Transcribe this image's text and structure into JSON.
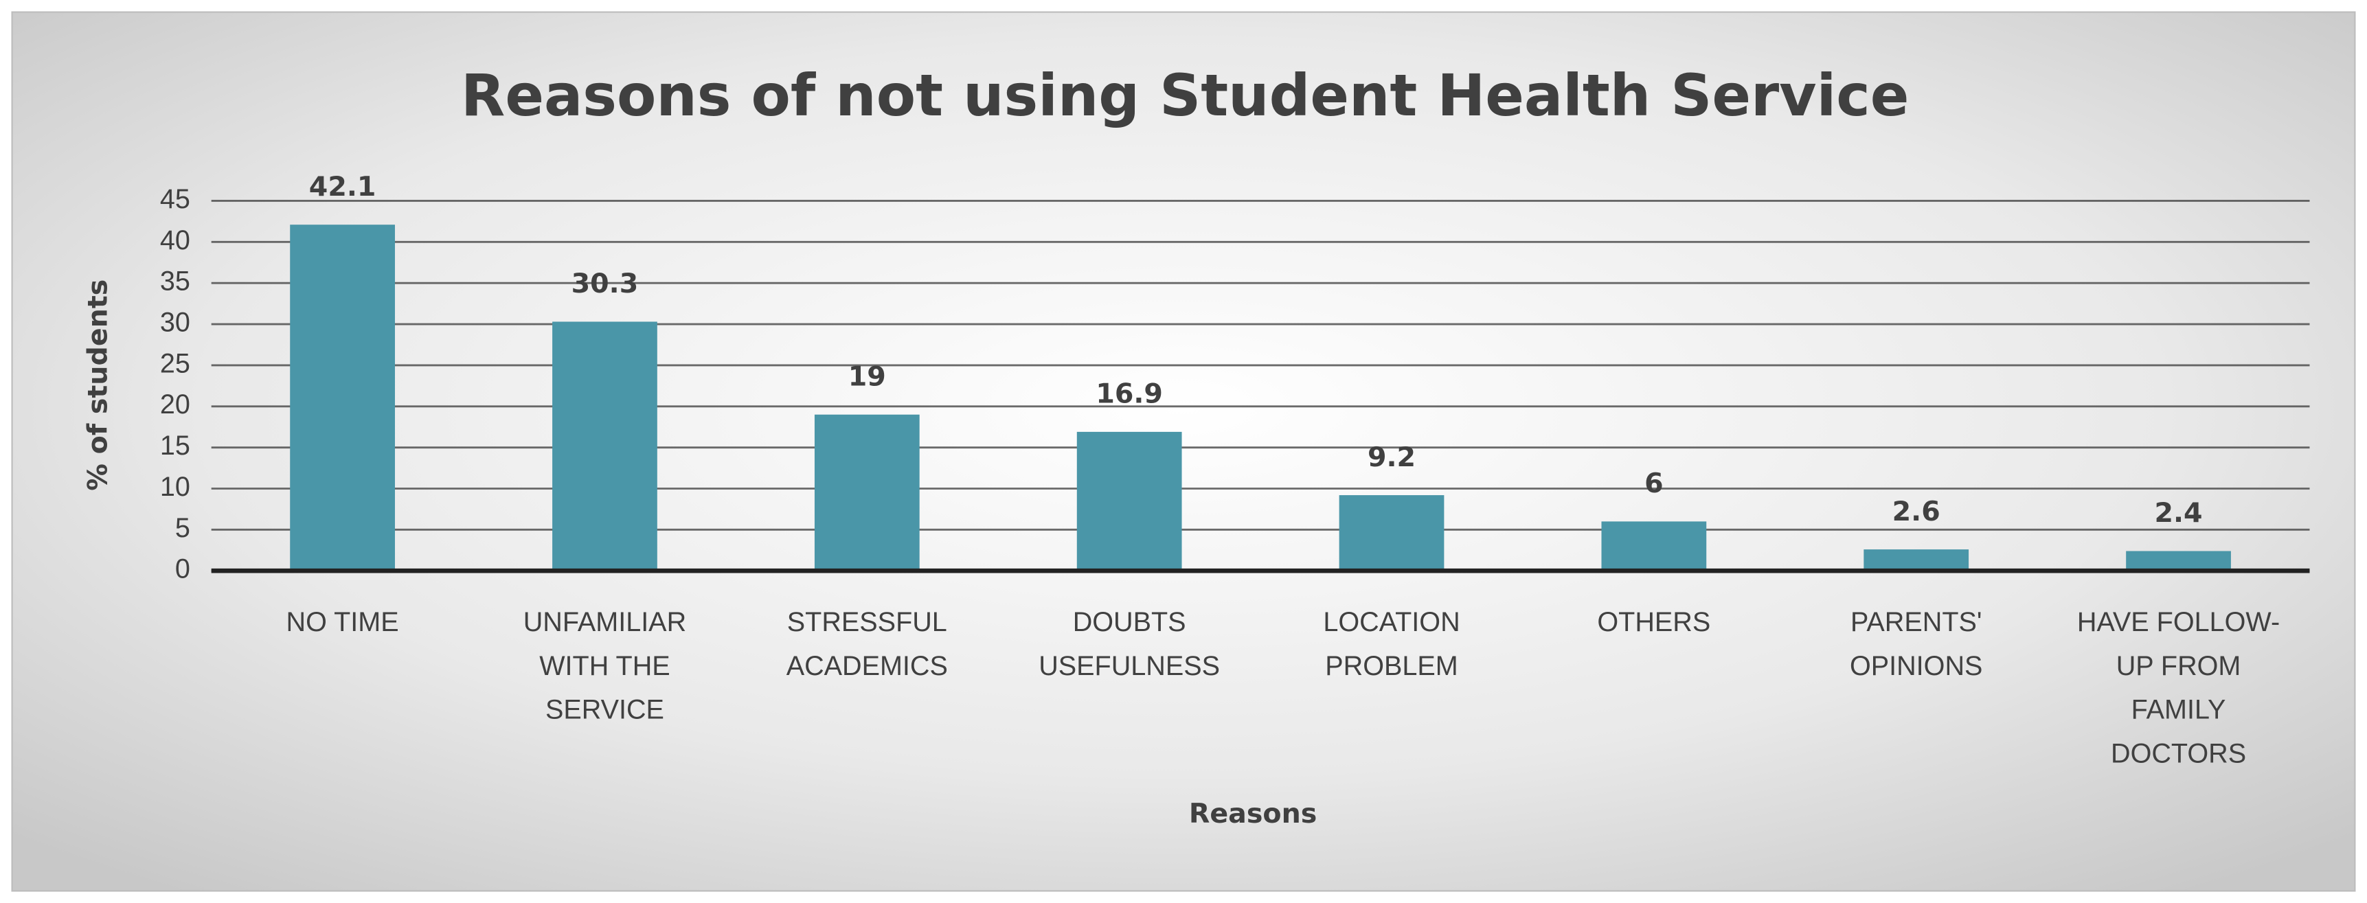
{
  "chart_data": {
    "type": "bar",
    "title": "Reasons of not using Student Health Service",
    "x_label": "Reasons",
    "y_label": "% of students",
    "categories": [
      "NO TIME",
      "UNFAMILIAR WITH THE SERVICE",
      "STRESSFUL ACADEMICS",
      "DOUBTS USEFULNESS",
      "LOCATION PROBLEM",
      "OTHERS",
      "PARENTS' OPINIONS",
      "HAVE FOLLOW-UP FROM FAMILY DOCTORS"
    ],
    "values": [
      42.1,
      30.3,
      19,
      16.9,
      9.2,
      6,
      2.6,
      2.4
    ],
    "color": "#4a96a8",
    "ylim": [
      0,
      45
    ],
    "yticks": [
      0,
      5,
      10,
      15,
      20,
      25,
      30,
      35,
      40,
      45
    ],
    "grid": true
  }
}
